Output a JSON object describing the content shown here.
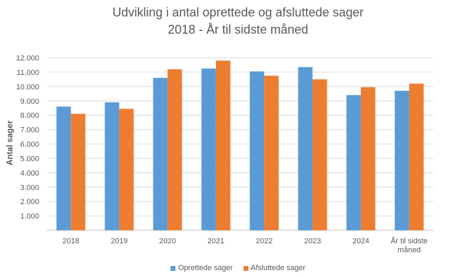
{
  "chart_data": {
    "type": "bar",
    "title": "Udvikling i antal oprettede og afsluttede sager",
    "subtitle": "2018 - År til sidste måned",
    "xlabel": "",
    "ylabel": "Antal sager",
    "categories": [
      "2018",
      "2019",
      "2020",
      "2021",
      "2022",
      "2023",
      "2024",
      "År til sidste måned"
    ],
    "series": [
      {
        "name": "Oprettede sager",
        "color": "#5B9BD5",
        "values": [
          8600,
          8900,
          10600,
          11250,
          11050,
          11350,
          9400,
          9700
        ]
      },
      {
        "name": "Afsluttede sager",
        "color": "#ED7D31",
        "values": [
          8100,
          8450,
          11200,
          11800,
          10750,
          10500,
          9950,
          10200
        ]
      }
    ],
    "ylim": [
      0,
      12000
    ],
    "yticks": [
      0,
      1000,
      2000,
      3000,
      4000,
      5000,
      6000,
      7000,
      8000,
      9000,
      10000,
      11000,
      12000
    ],
    "ytick_labels": [
      "",
      "1.000",
      "2.000",
      "3.000",
      "4.000",
      "5.000",
      "6.000",
      "7.000",
      "8.000",
      "9.000",
      "10.000",
      "11.000",
      "12.000"
    ],
    "grid": true,
    "legend_position": "bottom"
  }
}
